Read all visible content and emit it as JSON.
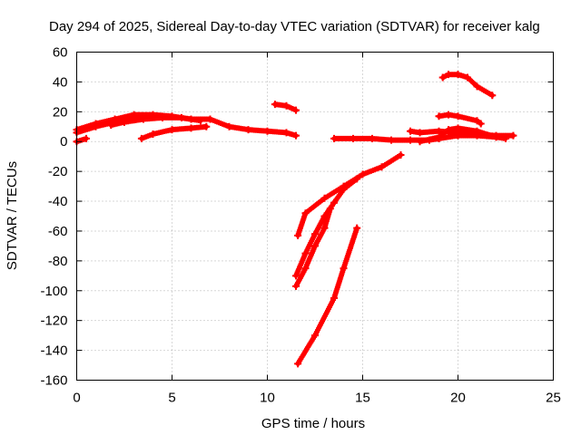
{
  "chart_data": {
    "type": "scatter",
    "title": "Day 294 of 2025, Sidereal Day-to-day VTEC variation (SDTVAR) for receiver kalg",
    "xlabel": "GPS time / hours",
    "ylabel": "SDTVAR / TECUs",
    "xlim": [
      0,
      25
    ],
    "ylim": [
      -160,
      60
    ],
    "x_ticks": [
      0,
      5,
      10,
      15,
      20,
      25
    ],
    "y_ticks": [
      -160,
      -140,
      -120,
      -100,
      -80,
      -60,
      -40,
      -20,
      0,
      20,
      40,
      60
    ],
    "grid": true,
    "legend": "none",
    "marker": "+",
    "color": "#ff0000",
    "series": [
      {
        "x": [
          0.0,
          1.0,
          2.0,
          3.0,
          4.0,
          5.0,
          6.0,
          7.0,
          8.0,
          9.0,
          10.0,
          11.0,
          11.5
        ],
        "y": [
          8,
          12,
          15,
          18,
          18,
          17,
          15,
          15,
          10,
          8,
          7,
          6,
          4
        ]
      },
      {
        "x": [
          0.0,
          1.0,
          2.0,
          3.0,
          3.5
        ],
        "y": [
          6,
          10,
          13,
          16,
          17
        ]
      },
      {
        "x": [
          1.8,
          2.5,
          3.5,
          4.5,
          5.5,
          6.5
        ],
        "y": [
          11,
          13,
          15,
          16,
          16,
          14
        ]
      },
      {
        "x": [
          0.0,
          0.5
        ],
        "y": [
          0,
          2
        ]
      },
      {
        "x": [
          3.4,
          4.0,
          5.0,
          6.0,
          6.8
        ],
        "y": [
          2,
          5,
          8,
          9,
          10
        ]
      },
      {
        "x": [
          10.4,
          11.0,
          11.5
        ],
        "y": [
          25,
          24,
          21
        ]
      },
      {
        "x": [
          13.5,
          14.5,
          15.5,
          16.5,
          17.5,
          18.5,
          19.0
        ],
        "y": [
          2,
          2,
          2,
          1,
          1,
          1,
          2
        ]
      },
      {
        "x": [
          17.5,
          18.0,
          19.0,
          20.0,
          21.0,
          22.0,
          22.9
        ],
        "y": [
          7,
          6,
          7,
          6,
          5,
          4,
          4
        ]
      },
      {
        "x": [
          18.0,
          19.0,
          19.5,
          20.0,
          21.0,
          22.0
        ],
        "y": [
          0,
          3,
          8,
          9,
          7,
          3
        ]
      },
      {
        "x": [
          19.0,
          20.0,
          21.0,
          22.0,
          22.5
        ],
        "y": [
          2,
          4,
          4,
          3,
          2
        ]
      },
      {
        "x": [
          19.0,
          19.5,
          20.0,
          21.0,
          21.2
        ],
        "y": [
          17,
          18,
          17,
          14,
          12
        ]
      },
      {
        "x": [
          19.2,
          19.5,
          20.0,
          20.5,
          21.0,
          21.8
        ],
        "y": [
          43,
          45,
          45,
          43,
          37,
          31
        ]
      },
      {
        "x": [
          11.6,
          12.0,
          13.0,
          14.0,
          15.0,
          16.0,
          17.0
        ],
        "y": [
          -63,
          -48,
          -38,
          -30,
          -22,
          -17,
          -9
        ]
      },
      {
        "x": [
          11.5,
          12.0,
          12.5,
          13.0,
          13.5,
          14.0,
          14.7
        ],
        "y": [
          -90,
          -75,
          -62,
          -50,
          -41,
          -32,
          -25
        ]
      },
      {
        "x": [
          11.5,
          12.0,
          12.5,
          13.0,
          13.3
        ],
        "y": [
          -97,
          -85,
          -70,
          -58,
          -45
        ]
      },
      {
        "x": [
          11.6,
          12.5,
          13.5,
          14.0,
          14.7
        ],
        "y": [
          -149,
          -130,
          -105,
          -85,
          -58
        ]
      }
    ]
  }
}
